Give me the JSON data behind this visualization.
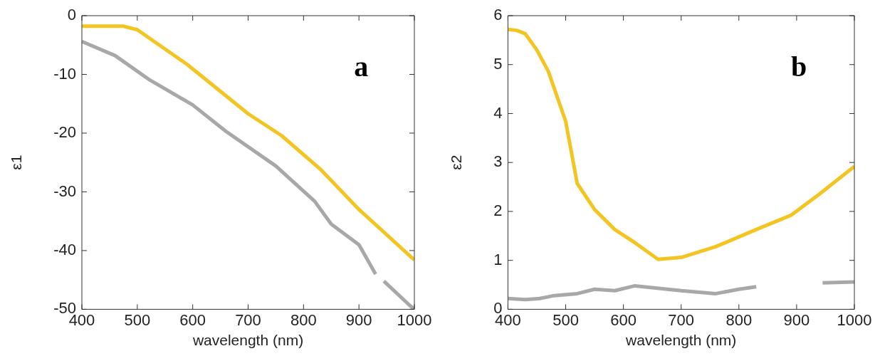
{
  "chart_data": [
    {
      "type": "line",
      "xlabel": "wavelength (nm)",
      "ylabel": "ε1",
      "annotations": [
        "a"
      ],
      "xlim": [
        400,
        1000
      ],
      "xticks": [
        400,
        500,
        600,
        700,
        800,
        900,
        1000
      ],
      "ylim": [
        -50,
        0
      ],
      "yticks": [
        -50,
        -40,
        -30,
        -20,
        -10,
        0
      ],
      "grid": false,
      "legend": false,
      "marker": "none",
      "line_style": "solid",
      "series": [
        {
          "color": "#f2c523",
          "x": [
            400,
            475,
            500,
            590,
            700,
            760,
            830,
            900,
            1000
          ],
          "values": [
            -1.8,
            -1.8,
            -2.4,
            -8.3,
            -16.7,
            -20.4,
            -26.1,
            -33,
            -41.6
          ]
        },
        {
          "color": "#a8a8a8",
          "x": [
            400,
            460,
            520,
            600,
            660,
            750,
            820,
            850,
            900,
            930,
            937,
            945,
            990,
            1000
          ],
          "values": [
            -4.4,
            -6.8,
            -10.8,
            -15.2,
            -19.7,
            -25.6,
            -31.6,
            -35.5,
            -39,
            -44,
            null,
            -45.2,
            -49.2,
            -50
          ]
        }
      ]
    },
    {
      "type": "line",
      "xlabel": "wavelength (nm)",
      "ylabel": "ε2",
      "annotations": [
        "b"
      ],
      "xlim": [
        400,
        1000
      ],
      "xticks": [
        400,
        500,
        600,
        700,
        800,
        900,
        1000
      ],
      "ylim": [
        0,
        6
      ],
      "yticks": [
        0,
        1,
        2,
        3,
        4,
        5,
        6
      ],
      "grid": false,
      "legend": false,
      "marker": "none",
      "line_style": "solid",
      "series": [
        {
          "color": "#f2c523",
          "x": [
            400,
            415,
            430,
            450,
            470,
            500,
            520,
            550,
            585,
            620,
            660,
            700,
            760,
            830,
            890,
            940,
            1000
          ],
          "values": [
            5.72,
            5.7,
            5.63,
            5.3,
            4.86,
            3.84,
            2.57,
            2.04,
            1.63,
            1.36,
            1.02,
            1.06,
            1.28,
            1.63,
            1.92,
            2.36,
            2.92
          ]
        },
        {
          "color": "#a8a8a8",
          "x": [
            400,
            430,
            455,
            480,
            520,
            550,
            585,
            620,
            700,
            760,
            800,
            830,
            880,
            945,
            1000
          ],
          "values": [
            0.22,
            0.2,
            0.22,
            0.28,
            0.32,
            0.41,
            0.38,
            0.48,
            0.38,
            0.32,
            0.41,
            0.46,
            null,
            0.54,
            0.56
          ]
        }
      ]
    }
  ]
}
